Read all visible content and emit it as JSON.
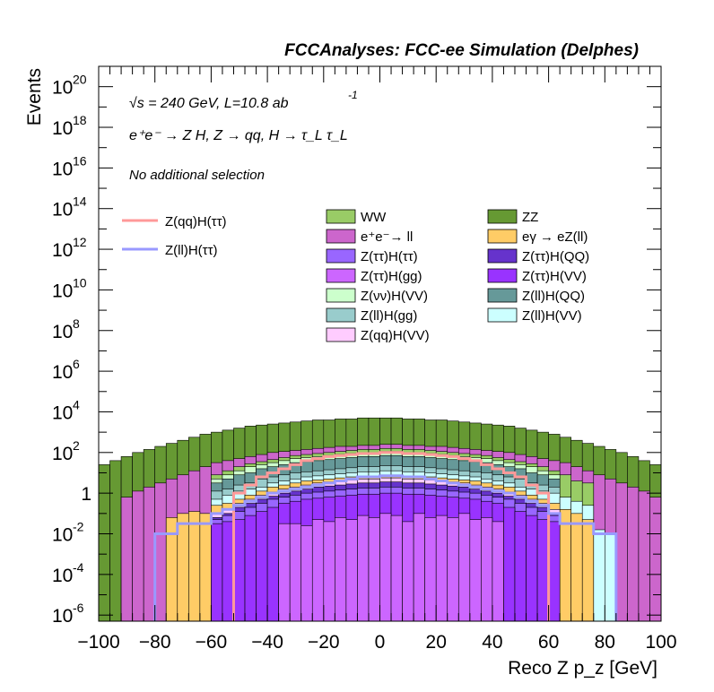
{
  "chart_data": {
    "type": "area",
    "title": "FCCAnalyses: FCC-ee Simulation (Delphes)",
    "xlabel": "Reco Z p_z [GeV]",
    "ylabel": "Events",
    "xlim": [
      -100,
      100
    ],
    "ylim_log10": [
      -6.3,
      21
    ],
    "y_scale": "log",
    "annotations": {
      "energy": "√s = 240 GeV, L=10.8 ab",
      "energy_exp": "-1",
      "process": "e⁺e⁻ → Z H, Z → qq, H → τ_L τ_L",
      "selection": "No additional selection"
    },
    "x_ticks": [
      "−100",
      "−80",
      "−60",
      "−40",
      "−20",
      "0",
      "20",
      "40",
      "60",
      "80",
      "100"
    ],
    "y_ticks": [
      {
        "base": "10",
        "exp": "20",
        "p": 20
      },
      {
        "base": "10",
        "exp": "18",
        "p": 18
      },
      {
        "base": "10",
        "exp": "16",
        "p": 16
      },
      {
        "base": "10",
        "exp": "14",
        "p": 14
      },
      {
        "base": "10",
        "exp": "12",
        "p": 12
      },
      {
        "base": "10",
        "exp": "10",
        "p": 10
      },
      {
        "base": "10",
        "exp": "8",
        "p": 8
      },
      {
        "base": "10",
        "exp": "6",
        "p": 6
      },
      {
        "base": "10",
        "exp": "4",
        "p": 4
      },
      {
        "base": "10",
        "exp": "2",
        "p": 2
      },
      {
        "base": "1",
        "exp": "",
        "p": 0
      },
      {
        "base": "10",
        "exp": "-2",
        "p": -2
      },
      {
        "base": "10",
        "exp": "-4",
        "p": -4
      },
      {
        "base": "10",
        "exp": "-6",
        "p": -6
      }
    ],
    "legend_lines": [
      {
        "label": "Z(qq)H(ττ)",
        "color": "#ff9999"
      },
      {
        "label": "Z(ll)H(ττ)",
        "color": "#9999ff"
      }
    ],
    "legend_fills": [
      {
        "label": "WW",
        "color": "#99cc66"
      },
      {
        "label": "ZZ",
        "color": "#669933"
      },
      {
        "label": "e⁺e⁻→ ll",
        "color": "#cc66cc"
      },
      {
        "label": "eγ → eZ(ll)",
        "color": "#ffcc66"
      },
      {
        "label": "Z(ττ)H(ττ)",
        "color": "#9966ff"
      },
      {
        "label": "Z(ττ)H(QQ)",
        "color": "#6633cc"
      },
      {
        "label": "Z(ττ)H(gg)",
        "color": "#cc66ff"
      },
      {
        "label": "Z(ττ)H(VV)",
        "color": "#9933ff"
      },
      {
        "label": "Z(νν)H(VV)",
        "color": "#ccffcc"
      },
      {
        "label": "Z(ll)H(QQ)",
        "color": "#669999"
      },
      {
        "label": "Z(ll)H(gg)",
        "color": "#99cccc"
      },
      {
        "label": "Z(ll)H(VV)",
        "color": "#ccffff"
      },
      {
        "label": "Z(qq)H(VV)",
        "color": "#ffccff"
      }
    ],
    "bins": {
      "x_min": -100,
      "x_max": 100,
      "width": 4
    },
    "stack_log10_top": [
      {
        "name": "Z(ττ)H(gg)",
        "color": "#cc66ff",
        "values": [
          -9,
          -9,
          -9,
          -9,
          -9,
          -9,
          -9,
          -9,
          -9,
          -9,
          -9,
          -9,
          -9,
          -9,
          -9,
          -9,
          -1.5,
          -1.5,
          -1.6,
          -1.3,
          -1.4,
          -1.2,
          -1.3,
          -1.1,
          -1.2,
          -1.0,
          -1.1,
          -1.4,
          -1.0,
          -1.2,
          -1.1,
          -1.2,
          -1.0,
          -1.3,
          -1.2,
          -1.4,
          -9,
          -9,
          -9,
          -9,
          -9,
          -9,
          -9,
          -9,
          -9,
          -9,
          -9,
          -9,
          -9,
          -9
        ]
      },
      {
        "name": "Z(ττ)H(VV)",
        "color": "#9933ff",
        "values": [
          -9,
          -9,
          -9,
          -9,
          -9,
          -9,
          -9,
          -9,
          -9,
          -9,
          -1.5,
          -1.4,
          -1.3,
          -1.1,
          -0.9,
          -0.7,
          -0.5,
          -0.4,
          -0.3,
          -0.25,
          -0.2,
          -0.15,
          -0.1,
          -0.05,
          -0.05,
          0.0,
          0.0,
          -0.05,
          -0.05,
          -0.1,
          -0.15,
          -0.2,
          -0.25,
          -0.3,
          -0.4,
          -0.5,
          -0.7,
          -0.9,
          -1.1,
          -1.3,
          -1.4,
          -9,
          -9,
          -9,
          -9,
          -9,
          -9,
          -9,
          -9,
          -9
        ]
      },
      {
        "name": "Z(ττ)H(ττ)",
        "color": "#9966ff",
        "values": [
          -9,
          -9,
          -9,
          -9,
          -9,
          -9,
          -9,
          -9,
          -9,
          -9,
          -1.3,
          -1.1,
          -0.9,
          -0.7,
          -0.5,
          -0.3,
          -0.2,
          -0.1,
          0.0,
          0.05,
          0.1,
          0.15,
          0.2,
          0.25,
          0.25,
          0.3,
          0.3,
          0.25,
          0.25,
          0.2,
          0.15,
          0.1,
          0.05,
          0.0,
          -0.1,
          -0.2,
          -0.3,
          -0.5,
          -0.7,
          -0.9,
          -1.1,
          -9,
          -9,
          -9,
          -9,
          -9,
          -9,
          -9,
          -9,
          -9
        ]
      },
      {
        "name": "Z(ττ)H(QQ)",
        "color": "#6633cc",
        "values": [
          -9,
          -9,
          -9,
          -9,
          -9,
          -9,
          -9,
          -9,
          -9,
          -9,
          -1.2,
          -1.0,
          -0.7,
          -0.5,
          -0.3,
          -0.15,
          0.0,
          0.1,
          0.2,
          0.3,
          0.35,
          0.4,
          0.45,
          0.5,
          0.5,
          0.55,
          0.55,
          0.5,
          0.5,
          0.45,
          0.4,
          0.35,
          0.3,
          0.2,
          0.1,
          0.0,
          -0.15,
          -0.3,
          -0.5,
          -0.7,
          -1.0,
          -9,
          -9,
          -9,
          -9,
          -9,
          -9,
          -9,
          -9,
          -9
        ]
      },
      {
        "name": "Z(qq)H(VV)",
        "color": "#ffccff",
        "values": [
          -9,
          -9,
          -9,
          -9,
          -9,
          -9,
          -9,
          -9,
          -9,
          -9,
          -1.0,
          -0.8,
          -0.5,
          -0.3,
          -0.1,
          0.05,
          0.2,
          0.3,
          0.4,
          0.5,
          0.55,
          0.6,
          0.65,
          0.7,
          0.7,
          0.75,
          0.75,
          0.7,
          0.7,
          0.65,
          0.6,
          0.55,
          0.5,
          0.4,
          0.3,
          0.2,
          0.05,
          -0.1,
          -0.3,
          -0.5,
          -0.8,
          -9,
          -9,
          -9,
          -9,
          -9,
          -9,
          -9,
          -9,
          -9
        ]
      },
      {
        "name": "eγ → eZ(ll)",
        "color": "#ffcc66",
        "values": [
          -9,
          -9,
          -9,
          -9,
          -9,
          -9,
          -1.2,
          -1.0,
          -0.9,
          -1.0,
          -0.6,
          -0.5,
          -0.3,
          -0.1,
          0.1,
          0.3,
          0.4,
          0.5,
          0.6,
          0.65,
          0.7,
          0.75,
          0.8,
          0.85,
          0.85,
          0.9,
          0.9,
          0.85,
          0.85,
          0.8,
          0.75,
          0.7,
          0.65,
          0.6,
          0.5,
          0.4,
          0.3,
          0.1,
          -0.1,
          -0.3,
          -0.5,
          -0.8,
          -1.0,
          -1.3,
          -9,
          -9,
          -9,
          -9,
          -9,
          -9
        ]
      },
      {
        "name": "Z(ll)H(VV)",
        "color": "#ccffff",
        "values": [
          -9,
          -9,
          -9,
          -9,
          -9,
          -9,
          -9,
          -9,
          -9,
          -9,
          -0.3,
          -0.1,
          0.1,
          0.2,
          0.3,
          0.5,
          0.6,
          0.7,
          0.8,
          0.85,
          0.9,
          0.95,
          1.0,
          1.05,
          1.05,
          1.1,
          1.1,
          1.05,
          1.05,
          1.0,
          0.95,
          0.9,
          0.85,
          0.8,
          0.7,
          0.6,
          0.5,
          0.3,
          0.2,
          0.1,
          0.0,
          -0.2,
          -0.4,
          -0.6,
          -1.8,
          -2.0,
          -9,
          -9,
          -9,
          -9
        ]
      },
      {
        "name": "Z(ll)H(gg)",
        "color": "#99cccc",
        "values": [
          -9,
          -9,
          -9,
          -9,
          -9,
          -9,
          -9,
          -9,
          -9,
          -9,
          0.1,
          0.2,
          0.4,
          0.5,
          0.7,
          0.8,
          0.9,
          1.0,
          1.05,
          1.1,
          1.15,
          1.2,
          1.25,
          1.3,
          1.3,
          1.35,
          1.35,
          1.3,
          1.3,
          1.25,
          1.2,
          1.15,
          1.1,
          1.05,
          1.0,
          0.9,
          0.8,
          0.7,
          0.5,
          0.4,
          0.3,
          -9,
          -9,
          -9,
          -9,
          -9,
          -9,
          -9,
          -9,
          -9
        ]
      },
      {
        "name": "Z(ll)H(QQ)",
        "color": "#669999",
        "values": [
          -9,
          -9,
          -9,
          -9,
          -9,
          -9,
          -9,
          -9,
          -9,
          -9,
          0.5,
          0.7,
          0.9,
          1.0,
          1.2,
          1.3,
          1.4,
          1.5,
          1.55,
          1.6,
          1.65,
          1.7,
          1.75,
          1.8,
          1.8,
          1.85,
          1.85,
          1.8,
          1.8,
          1.75,
          1.7,
          1.65,
          1.6,
          1.55,
          1.5,
          1.4,
          1.3,
          1.2,
          1.0,
          0.9,
          0.7,
          -9,
          -9,
          -9,
          -9,
          -9,
          -9,
          -9,
          -9,
          -9
        ]
      },
      {
        "name": "Z(νν)H(VV)",
        "color": "#ccffcc",
        "values": [
          -9,
          -9,
          -9,
          -9,
          -9,
          -9,
          -9,
          -9,
          -9,
          -9,
          0.7,
          0.9,
          1.1,
          1.3,
          1.4,
          1.5,
          1.6,
          1.7,
          1.75,
          1.8,
          1.85,
          1.9,
          1.95,
          2.0,
          2.0,
          2.05,
          2.05,
          2.0,
          2.0,
          1.95,
          1.9,
          1.85,
          1.8,
          1.75,
          1.7,
          1.6,
          1.5,
          1.4,
          1.3,
          1.1,
          0.9,
          -9,
          -9,
          -9,
          -9,
          -9,
          -9,
          -9,
          -9,
          -9
        ]
      },
      {
        "name": "WW",
        "color": "#99cc66",
        "values": [
          -9,
          -9,
          -9,
          -9,
          -9,
          -9,
          -9,
          -9,
          -9,
          -9,
          0.9,
          1.1,
          1.3,
          1.45,
          1.55,
          1.65,
          1.75,
          1.85,
          1.9,
          1.95,
          2.0,
          2.05,
          2.1,
          2.15,
          2.15,
          2.2,
          2.2,
          2.15,
          2.15,
          2.1,
          2.05,
          2.0,
          1.95,
          1.9,
          1.85,
          1.75,
          1.65,
          1.55,
          1.45,
          1.3,
          1.1,
          0.9,
          0.6,
          0.5,
          -9,
          -9,
          -9,
          -9,
          -9,
          -9
        ]
      },
      {
        "name": "e⁺e⁻→ ll",
        "color": "#cc66cc",
        "values": [
          -9,
          -9,
          -0.2,
          0.1,
          0.3,
          0.5,
          0.7,
          0.9,
          1.1,
          1.3,
          1.5,
          1.6,
          1.7,
          1.8,
          1.9,
          2.0,
          2.05,
          2.1,
          2.15,
          2.2,
          2.25,
          2.3,
          2.3,
          2.35,
          2.35,
          2.4,
          2.4,
          2.35,
          2.35,
          2.3,
          2.3,
          2.25,
          2.2,
          2.15,
          2.1,
          2.05,
          2.0,
          1.9,
          1.8,
          1.7,
          1.6,
          1.5,
          1.3,
          1.1,
          0.9,
          0.7,
          0.5,
          0.3,
          0.1,
          -0.2
        ]
      },
      {
        "name": "ZZ",
        "color": "#669933",
        "values": [
          1.4,
          1.6,
          1.8,
          2.0,
          2.15,
          2.3,
          2.45,
          2.6,
          2.75,
          2.9,
          3.0,
          3.1,
          3.2,
          3.3,
          3.35,
          3.4,
          3.45,
          3.5,
          3.55,
          3.6,
          3.6,
          3.65,
          3.65,
          3.7,
          3.7,
          3.7,
          3.7,
          3.65,
          3.65,
          3.6,
          3.6,
          3.55,
          3.5,
          3.45,
          3.4,
          3.35,
          3.3,
          3.2,
          3.1,
          3.0,
          2.9,
          2.75,
          2.6,
          2.45,
          2.3,
          2.15,
          2.0,
          1.8,
          1.6,
          1.4
        ]
      }
    ],
    "signal_log10": [
      {
        "name": "Z(qq)H(ττ)",
        "color": "#ff9999",
        "values": [
          -9,
          -9,
          -9,
          -9,
          -9,
          -9,
          -9,
          -9,
          -9,
          -9,
          -9,
          -9,
          0.0,
          0.4,
          0.8,
          1.0,
          1.2,
          1.4,
          1.6,
          1.7,
          1.8,
          1.85,
          1.9,
          1.95,
          1.95,
          2.0,
          2.0,
          1.95,
          1.95,
          1.9,
          1.85,
          1.8,
          1.7,
          1.6,
          1.4,
          1.2,
          1.0,
          0.8,
          0.4,
          0.0,
          -9,
          -9,
          -9,
          -9,
          -9,
          -9,
          -9,
          -9,
          -9,
          -9
        ]
      },
      {
        "name": "Z(ll)H(ττ)",
        "color": "#9999ff",
        "values": [
          -9,
          -9,
          -9,
          -9,
          -9,
          -2.0,
          -2.0,
          -1.5,
          -1.5,
          -1.5,
          -1.0,
          -0.8,
          -0.6,
          -0.4,
          -0.2,
          0.0,
          0.1,
          0.2,
          0.3,
          0.4,
          0.5,
          0.6,
          0.7,
          0.8,
          0.8,
          0.85,
          0.85,
          0.8,
          0.8,
          0.7,
          0.6,
          0.5,
          0.4,
          0.3,
          0.2,
          0.1,
          0.0,
          -0.2,
          -0.4,
          -0.6,
          -1.0,
          -1.5,
          -1.5,
          -1.5,
          -2.0,
          -2.0,
          -9,
          -9,
          -9,
          -9
        ]
      }
    ]
  }
}
